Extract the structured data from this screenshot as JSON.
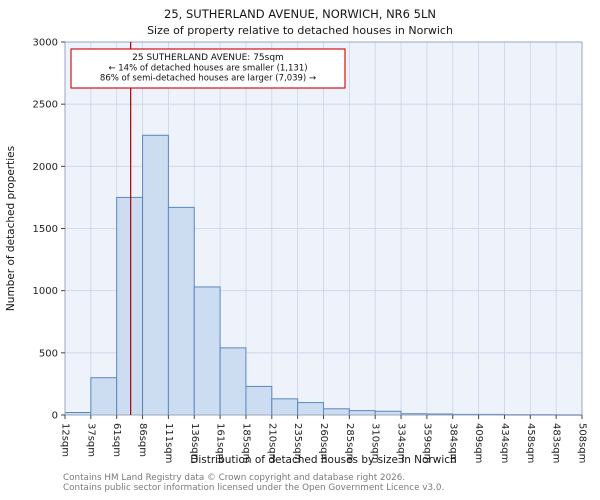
{
  "chart_data": {
    "type": "bar",
    "title": "25, SUTHERLAND AVENUE, NORWICH, NR6 5LN",
    "subtitle": "Size of property relative to detached houses in Norwich",
    "xlabel": "Distribution of detached houses by size in Norwich",
    "ylabel": "Number of detached properties",
    "ylim": [
      0,
      3000
    ],
    "yticks": [
      0,
      500,
      1000,
      1500,
      2000,
      2500,
      3000
    ],
    "grid": true,
    "legend_position": "none",
    "bin_labels": [
      "12sqm",
      "37sqm",
      "61sqm",
      "86sqm",
      "111sqm",
      "136sqm",
      "161sqm",
      "185sqm",
      "210sqm",
      "235sqm",
      "260sqm",
      "285sqm",
      "310sqm",
      "334sqm",
      "359sqm",
      "384sqm",
      "409sqm",
      "434sqm",
      "458sqm",
      "483sqm",
      "508sqm"
    ],
    "values": [
      20,
      300,
      1750,
      2250,
      1670,
      1030,
      540,
      230,
      130,
      100,
      50,
      35,
      30,
      10,
      8,
      5,
      5,
      3,
      3,
      2
    ],
    "marker": {
      "label": "25 SUTHERLAND AVENUE",
      "value_sqm": 75,
      "axis_min_sqm": 12,
      "axis_max_sqm": 508,
      "color": "#aa0000"
    },
    "annotation": {
      "line1": "25 SUTHERLAND AVENUE: 75sqm",
      "line2": "← 14% of detached houses are smaller (1,131)",
      "line3": "86% of semi-detached houses are larger (7,039) →",
      "border_color": "#cc0000",
      "text_color": "#111111"
    },
    "colors": {
      "bar_fill": "#ccdcf1",
      "bar_edge": "#5a87c2",
      "grid": "#c9d4e6",
      "plot_bg": "#eef3fb",
      "plot_border": "#9aa7bd",
      "axis_text": "#222222"
    }
  },
  "footer": {
    "line1": "Contains HM Land Registry data © Crown copyright and database right 2026.",
    "line2": "Contains public sector information licensed under the Open Government Licence v3.0."
  }
}
